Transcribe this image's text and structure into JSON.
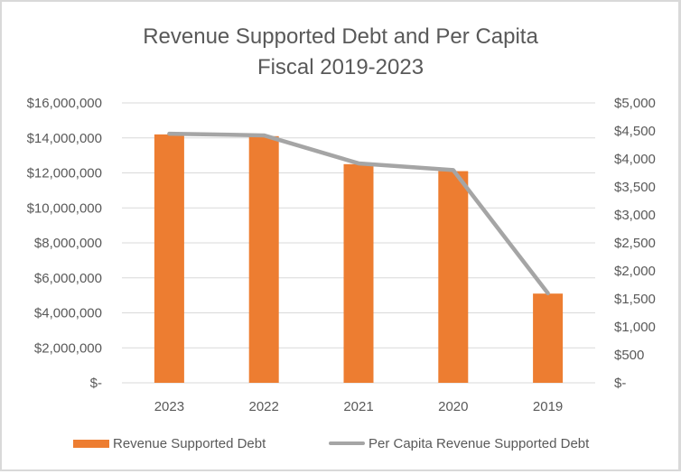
{
  "chart_data": {
    "type": "bar",
    "combo": "bar+line (secondary axis)",
    "title": "Revenue Supported Debt and Per Capita",
    "subtitle": "Fiscal 2019-2023",
    "categories": [
      "2023",
      "2022",
      "2021",
      "2020",
      "2019"
    ],
    "series": [
      {
        "name": "Revenue Supported Debt",
        "type": "bar",
        "axis": "primary",
        "color": "#ed7d31",
        "values": [
          14200000,
          14100000,
          12500000,
          12100000,
          5100000
        ]
      },
      {
        "name": "Per Capita Revenue Supported Debt",
        "type": "line",
        "axis": "secondary",
        "color": "#a5a5a5",
        "values": [
          4450,
          4420,
          3920,
          3800,
          1600
        ]
      }
    ],
    "y_left": {
      "ylim": [
        0,
        16000000
      ],
      "tick_labels": [
        "$-",
        "$2,000,000",
        "$4,000,000",
        "$6,000,000",
        "$8,000,000",
        "$10,000,000",
        "$12,000,000",
        "$14,000,000",
        "$16,000,000"
      ]
    },
    "y_right": {
      "ylim": [
        0,
        5000
      ],
      "tick_labels": [
        "$-",
        "$500",
        "$1,000",
        "$1,500",
        "$2,000",
        "$2,500",
        "$3,000",
        "$3,500",
        "$4,000",
        "$4,500",
        "$5,000"
      ]
    },
    "xlabel": "",
    "ylabel": "",
    "grid": true,
    "legend_position": "bottom"
  }
}
